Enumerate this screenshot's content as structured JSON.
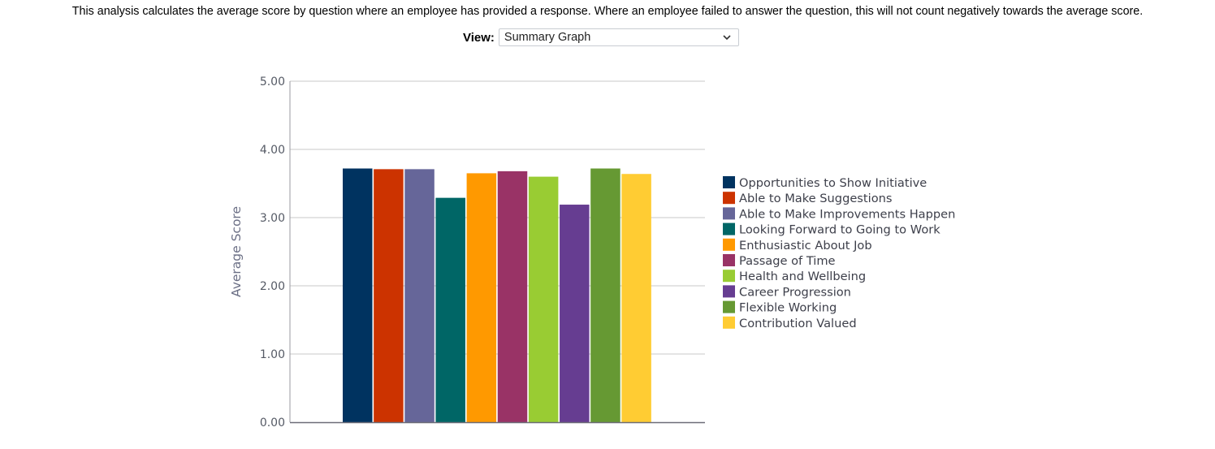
{
  "intro_text": "This analysis calculates the average score by question where an employee has provided a response. Where an employee failed to answer the question, this will not count negatively towards the average score.",
  "view": {
    "label": "View:",
    "selected": "Summary Graph"
  },
  "chart_data": {
    "type": "bar",
    "ylabel": "Average Score",
    "ylim": [
      0,
      5
    ],
    "yticks": [
      "0.00",
      "1.00",
      "2.00",
      "3.00",
      "4.00",
      "5.00"
    ],
    "grid": true,
    "legend_position": "right",
    "series": [
      {
        "name": "Opportunities to Show Initiative",
        "value": 3.72,
        "color": "#003360"
      },
      {
        "name": "Able to Make Suggestions",
        "value": 3.71,
        "color": "#cc3300"
      },
      {
        "name": "Able to Make Improvements Happen",
        "value": 3.71,
        "color": "#666699"
      },
      {
        "name": "Looking Forward to Going to Work",
        "value": 3.29,
        "color": "#006666"
      },
      {
        "name": "Enthusiastic About Job",
        "value": 3.65,
        "color": "#ff9900"
      },
      {
        "name": "Passage of Time",
        "value": 3.68,
        "color": "#993366"
      },
      {
        "name": "Health and Wellbeing",
        "value": 3.6,
        "color": "#99cc33"
      },
      {
        "name": "Career Progression",
        "value": 3.19,
        "color": "#663d91"
      },
      {
        "name": "Flexible Working",
        "value": 3.72,
        "color": "#669933"
      },
      {
        "name": "Contribution Valued",
        "value": 3.64,
        "color": "#ffcc33"
      }
    ]
  }
}
